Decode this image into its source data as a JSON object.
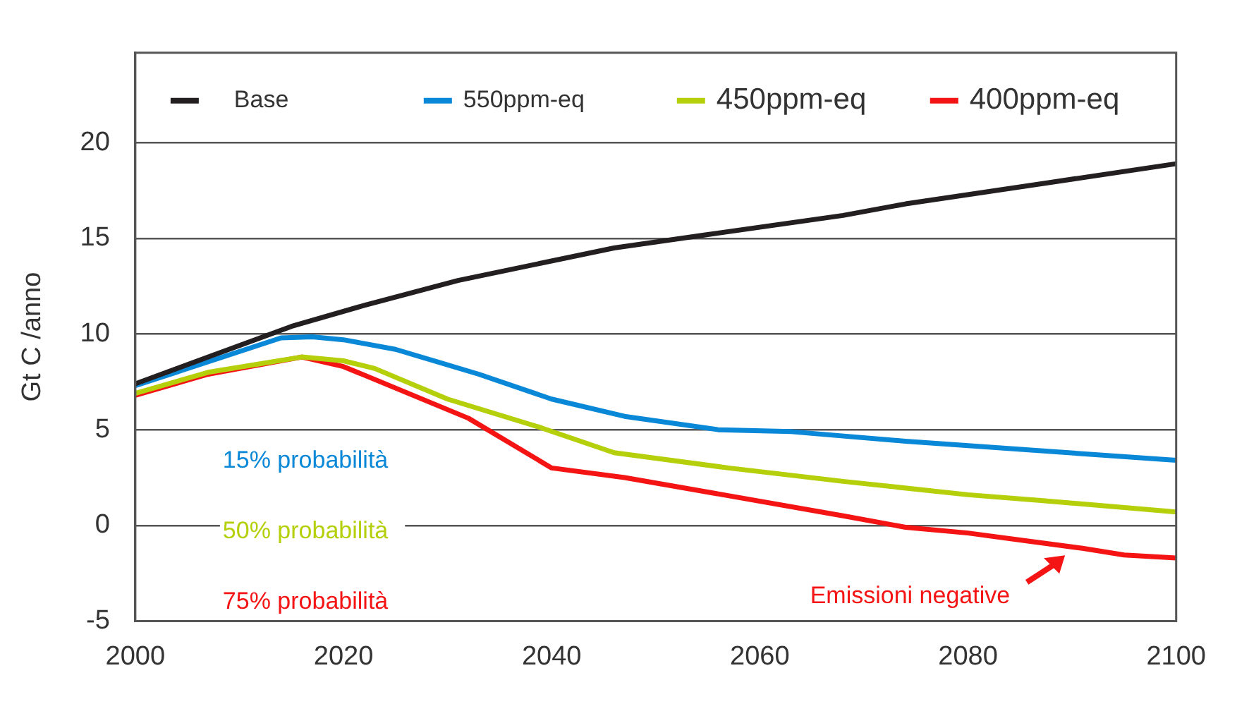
{
  "chart_data": {
    "type": "line",
    "ylabel": "Gt C /anno",
    "xlim": [
      2000,
      2100
    ],
    "xticks": [
      2000,
      2020,
      2040,
      2060,
      2080,
      2100
    ],
    "ylim": [
      -5,
      24.7
    ],
    "yticks": [
      -5,
      0,
      5,
      10,
      15,
      20
    ],
    "grid": "y",
    "legend": "top",
    "marker": "none",
    "line_style": "solid",
    "series": [
      {
        "name": "Base",
        "color": "#231f20",
        "x": [
          2000,
          2015,
          2022,
          2031,
          2046,
          2055,
          2068,
          2074,
          2100
        ],
        "values": [
          7.4,
          10.4,
          11.5,
          12.8,
          14.5,
          15.2,
          16.2,
          16.8,
          18.9
        ]
      },
      {
        "name": "550ppm-eq",
        "color": "#0a88d8",
        "x": [
          2000,
          2014,
          2017,
          2020,
          2025,
          2033,
          2040,
          2047,
          2056,
          2063,
          2074,
          2100
        ],
        "values": [
          7.3,
          9.8,
          9.85,
          9.7,
          9.2,
          7.9,
          6.6,
          5.7,
          5.0,
          4.9,
          4.4,
          3.4
        ]
      },
      {
        "name": "450ppm-eq",
        "color": "#b5cf0a",
        "x": [
          2000,
          2007,
          2016,
          2020,
          2023,
          2030,
          2039,
          2046,
          2057,
          2068,
          2080,
          2087,
          2100
        ],
        "values": [
          6.9,
          8.0,
          8.8,
          8.6,
          8.2,
          6.6,
          5.1,
          3.8,
          3.0,
          2.3,
          1.6,
          1.3,
          0.7
        ]
      },
      {
        "name": "400ppm-eq",
        "color": "#f51414",
        "x": [
          2000,
          2007,
          2016,
          2020,
          2032,
          2040,
          2047,
          2068,
          2074,
          2080,
          2091,
          2095,
          2100
        ],
        "values": [
          6.8,
          7.9,
          8.8,
          8.3,
          5.6,
          3.0,
          2.5,
          0.5,
          -0.1,
          -0.4,
          -1.2,
          -1.55,
          -1.7
        ]
      }
    ],
    "annotations": [
      "15% probabilità",
      "50% probabilità",
      "75% probabilità",
      {
        "text": "Emissioni negative",
        "x": 2090,
        "y": -1.2
      }
    ]
  }
}
